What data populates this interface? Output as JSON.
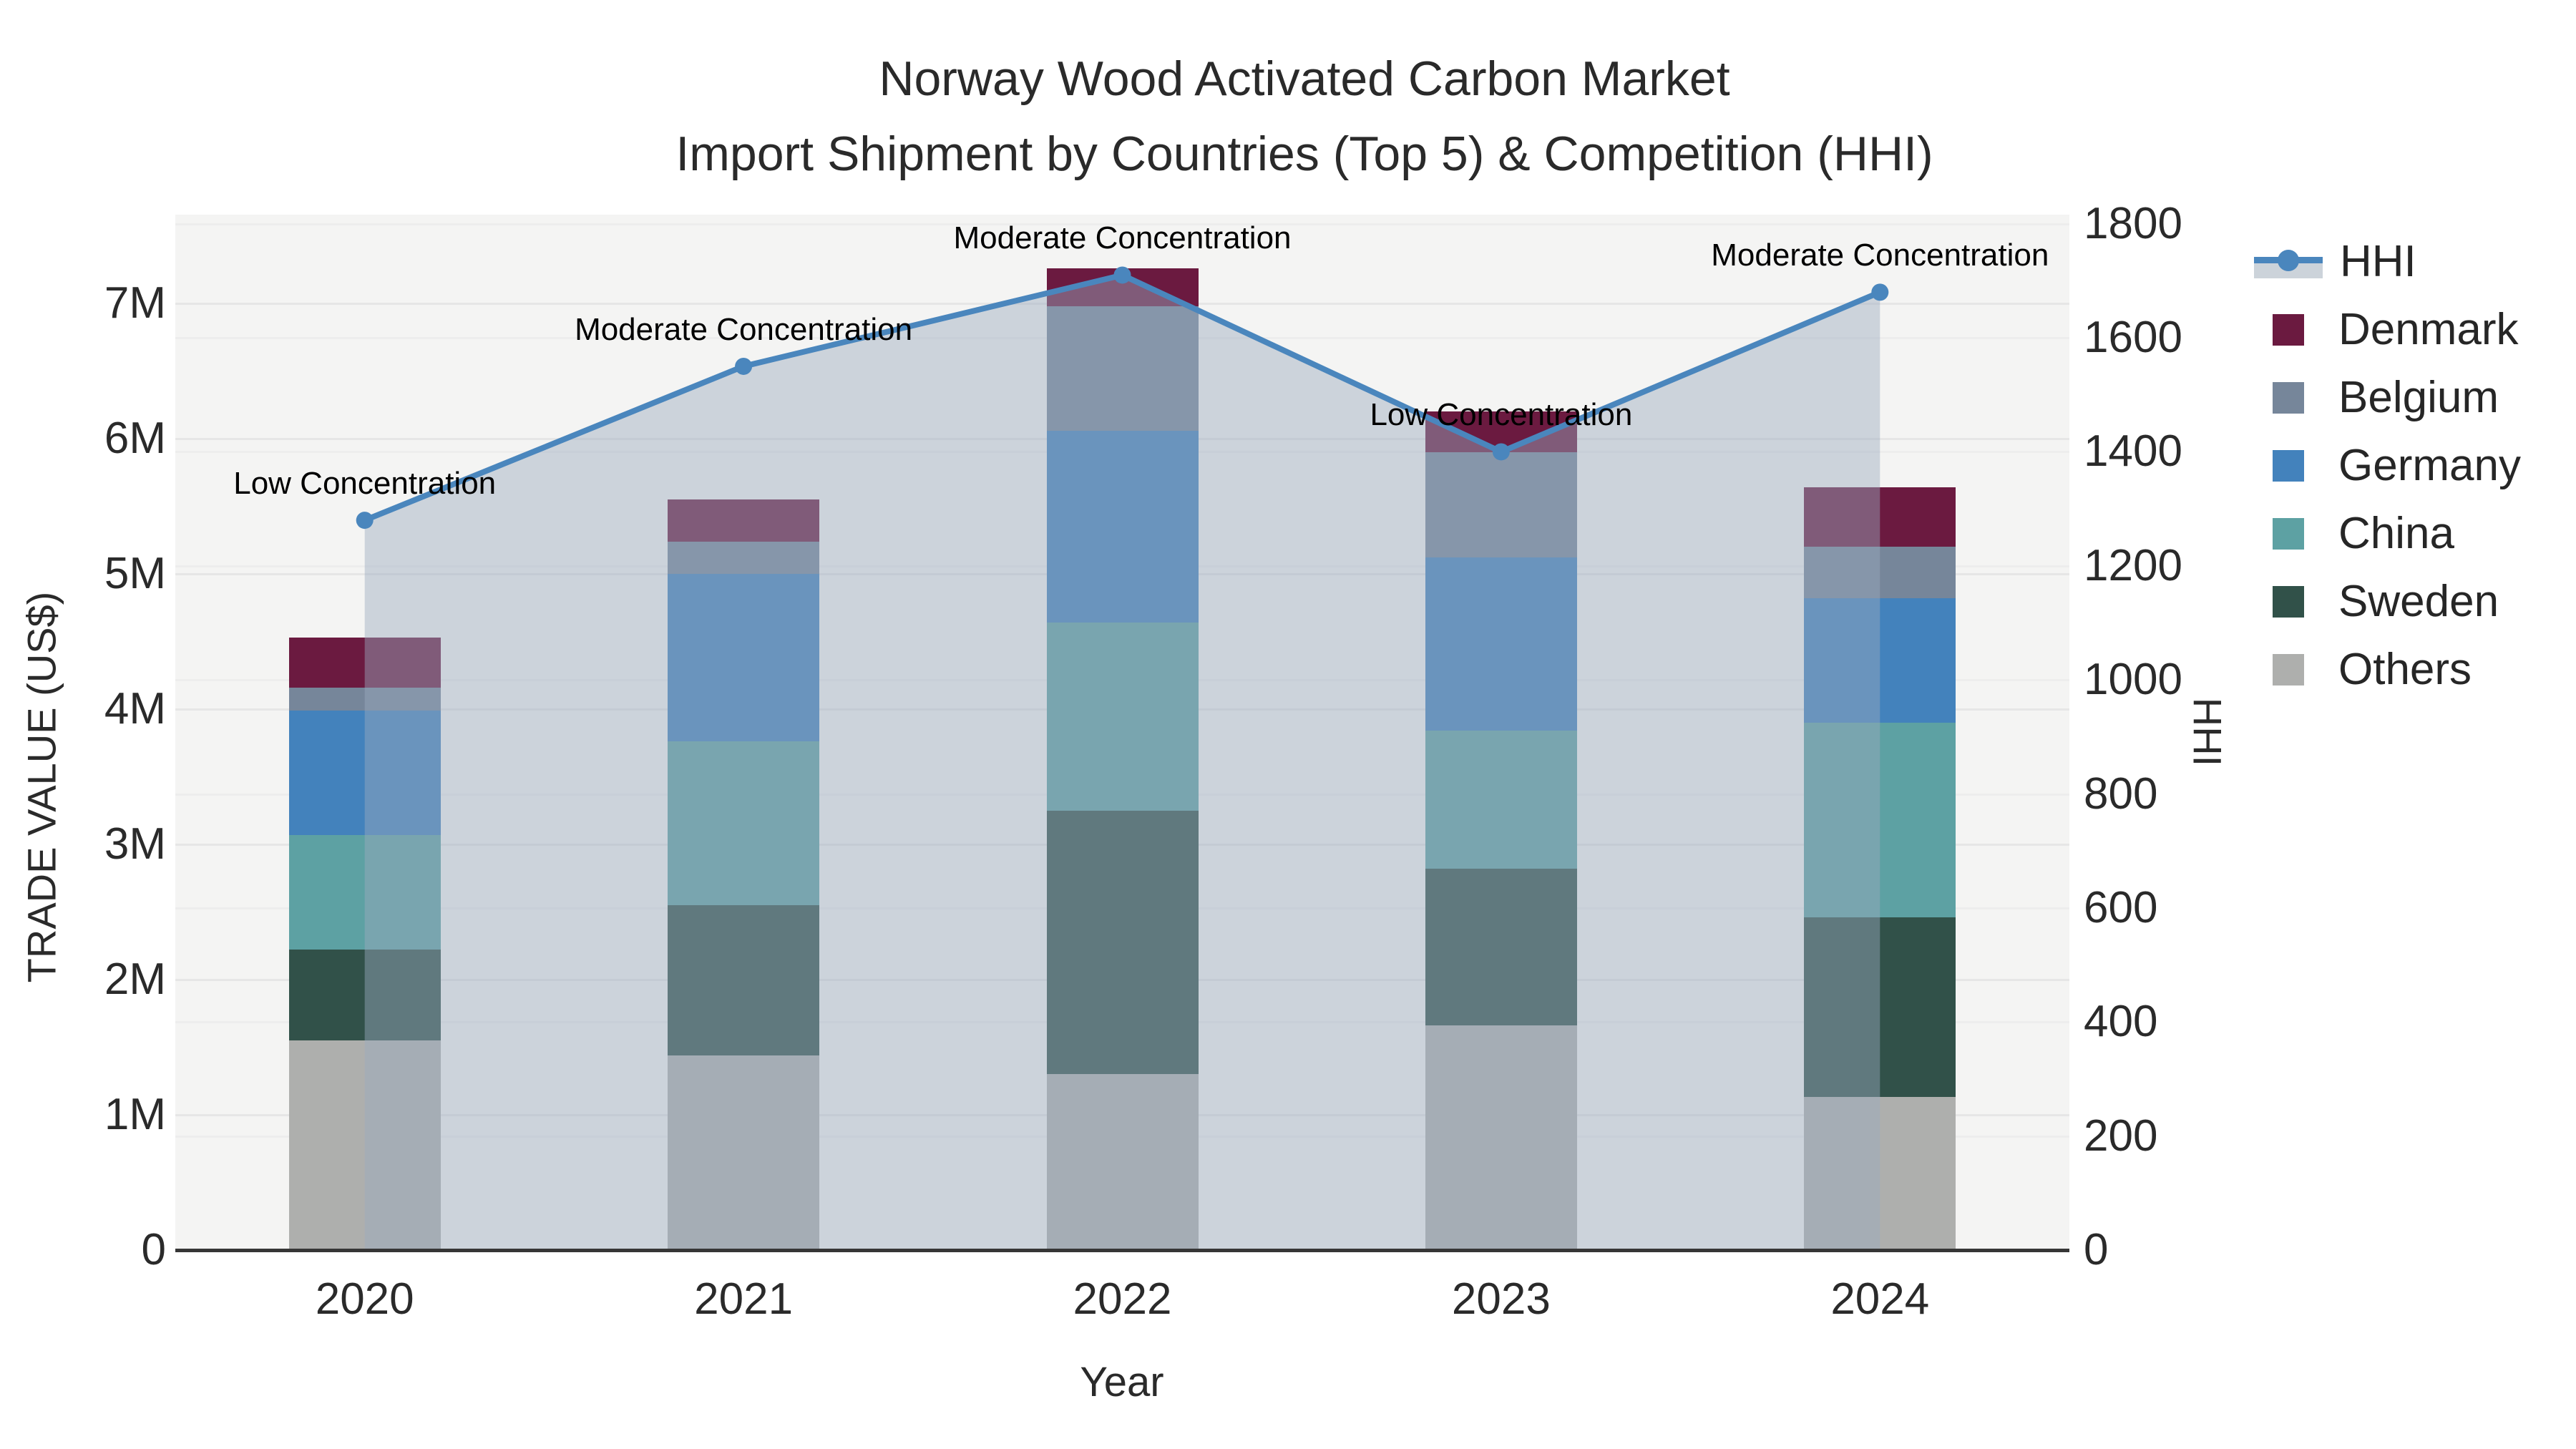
{
  "title": {
    "line1": "Norway Wood Activated Carbon Market",
    "line2": "Import Shipment by Countries (Top 5) & Competition (HHI)"
  },
  "chart_data": {
    "type": "bar+line",
    "title": "Norway Wood Activated Carbon Market Import Shipment by Countries (Top 5) & Competition (HHI)",
    "categories": [
      "2020",
      "2021",
      "2022",
      "2023",
      "2024"
    ],
    "xlabel": "Year",
    "ylabel_left": "TRADE VALUE (US$)",
    "ylabel_right": "HHI",
    "value_unit": "M US$",
    "stacking": "bottom-to-top",
    "series": [
      {
        "name": "Others",
        "color": "#AEAFAD",
        "values": [
          1.55,
          1.44,
          1.3,
          1.66,
          1.13
        ]
      },
      {
        "name": "Sweden",
        "color": "#315149",
        "values": [
          0.67,
          1.11,
          1.95,
          1.16,
          1.33
        ]
      },
      {
        "name": "China",
        "color": "#5DA1A3",
        "values": [
          0.85,
          1.21,
          1.39,
          1.02,
          1.44
        ]
      },
      {
        "name": "Germany",
        "color": "#4382BC",
        "values": [
          0.92,
          1.24,
          1.42,
          1.28,
          0.92
        ]
      },
      {
        "name": "Belgium",
        "color": "#76869A",
        "values": [
          0.17,
          0.24,
          0.92,
          0.78,
          0.38
        ]
      },
      {
        "name": "Denmark",
        "color": "#6B1A40",
        "values": [
          0.37,
          0.31,
          0.28,
          0.3,
          0.44
        ]
      }
    ],
    "bar_totals": [
      4.53,
      5.55,
      7.26,
      6.2,
      5.64
    ],
    "hhi": {
      "name": "HHI",
      "line_color": "#4A86BD",
      "area_color": "rgba(155,170,190,0.45)",
      "values": [
        1280,
        1550,
        1710,
        1400,
        1680
      ],
      "annotations": [
        "Low Concentration",
        "Moderate Concentration",
        "Moderate Concentration",
        "Low Concentration",
        "Moderate Concentration"
      ]
    },
    "yleft": {
      "labels": [
        "0",
        "1M",
        "2M",
        "3M",
        "4M",
        "5M",
        "6M",
        "7M"
      ],
      "values": [
        0,
        1,
        2,
        3,
        4,
        5,
        6,
        7
      ],
      "max": 7.656
    },
    "yright": {
      "labels": [
        "0",
        "200",
        "400",
        "600",
        "800",
        "1000",
        "1200",
        "1400",
        "1600",
        "1800"
      ],
      "values": [
        0,
        200,
        400,
        600,
        800,
        1000,
        1200,
        1400,
        1600,
        1800
      ],
      "max": 1816
    },
    "legend_order": [
      "HHI",
      "Denmark",
      "Belgium",
      "Germany",
      "China",
      "Sweden",
      "Others"
    ],
    "grid": "horizontal-both-axes",
    "legend_position": "right",
    "plot_bg": "#f4f4f3"
  }
}
